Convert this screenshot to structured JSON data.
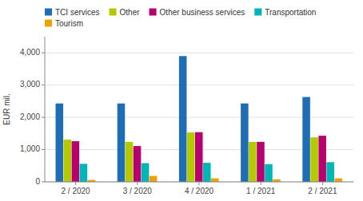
{
  "chart_data": {
    "type": "bar",
    "y_label": "EUR mil.",
    "categories": [
      "2 / 2020",
      "3 / 2020",
      "4 / 2020",
      "1 / 2021",
      "2 / 2021"
    ],
    "series": [
      {
        "name": "TCI services",
        "color": "#1f6eb5",
        "values": [
          2430,
          2430,
          3900,
          2430,
          2630
        ]
      },
      {
        "name": "Other",
        "color": "#b5c900",
        "values": [
          1310,
          1240,
          1530,
          1240,
          1380
        ]
      },
      {
        "name": "Other business services",
        "color": "#b5006e",
        "values": [
          1260,
          1110,
          1540,
          1240,
          1430
        ]
      },
      {
        "name": "Transportation",
        "color": "#00b5b5",
        "values": [
          560,
          580,
          590,
          550,
          610
        ]
      },
      {
        "name": "Tourism",
        "color": "#f0a000",
        "values": [
          60,
          185,
          110,
          80,
          110
        ]
      }
    ],
    "ylim": [
      0,
      4500
    ],
    "yticks": [
      0,
      {
        "value": 1000,
        "label": "1,000"
      },
      {
        "value": 2000,
        "label": "2,000"
      },
      {
        "value": 3000,
        "label": "3,000"
      },
      {
        "value": 4000,
        "label": "4,000"
      }
    ],
    "grid": true,
    "legend": "upper left"
  }
}
